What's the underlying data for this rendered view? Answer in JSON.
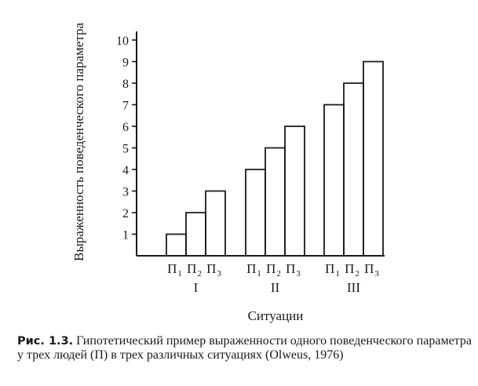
{
  "chart_data": {
    "type": "bar",
    "title": "",
    "ylabel": "Выраженность поведенческого параметра",
    "xlabel": "Ситуации",
    "ylim": [
      0,
      10
    ],
    "yticks": [
      1,
      2,
      3,
      4,
      5,
      6,
      7,
      8,
      9,
      10
    ],
    "grid": false,
    "groups": [
      {
        "label": "I",
        "bars": [
          {
            "person": "П",
            "index": "1",
            "value": 1
          },
          {
            "person": "П",
            "index": "2",
            "value": 2
          },
          {
            "person": "П",
            "index": "3",
            "value": 3
          }
        ]
      },
      {
        "label": "II",
        "bars": [
          {
            "person": "П",
            "index": "1",
            "value": 4
          },
          {
            "person": "П",
            "index": "2",
            "value": 5
          },
          {
            "person": "П",
            "index": "3",
            "value": 6
          }
        ]
      },
      {
        "label": "III",
        "bars": [
          {
            "person": "П",
            "index": "1",
            "value": 7
          },
          {
            "person": "П",
            "index": "2",
            "value": 8
          },
          {
            "person": "П",
            "index": "3",
            "value": 9
          }
        ]
      }
    ]
  },
  "caption": {
    "label": "Рис. 1.3.",
    "text": "Гипотетический пример выраженности одного поведенческого параметра у трех людей (П) в трех различных ситуациях (Olweus, 1976)"
  }
}
